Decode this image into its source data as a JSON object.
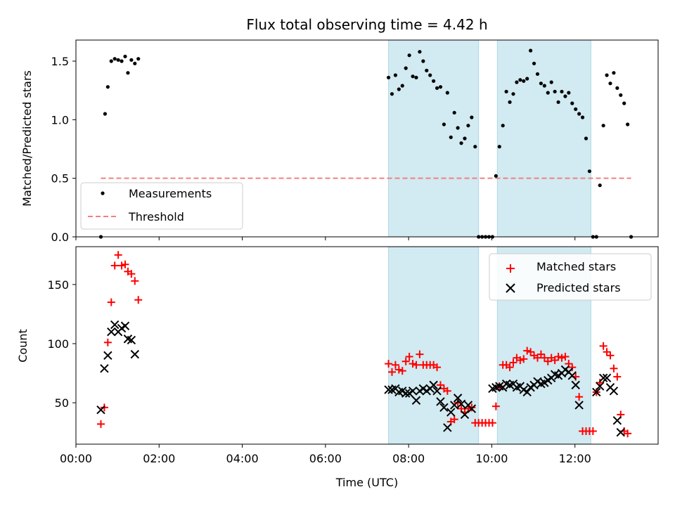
{
  "title": "Flux total observing time = 4.42 h",
  "chart_data": [
    {
      "type": "scatter",
      "panel": "top",
      "ylabel": "Matched/Predicted stars",
      "xlim": [
        "00:00",
        "14:00"
      ],
      "ylim": [
        0,
        1.68
      ],
      "yticks": [
        0,
        0.5,
        1.0,
        1.5
      ],
      "ytick_labels": [
        "0.0",
        "0.5",
        "1.0",
        "1.5"
      ],
      "grid": false,
      "legend_position": "lower-left",
      "shaded_intervals": [
        [
          "07:31",
          "09:41"
        ],
        [
          "10:08",
          "12:23"
        ]
      ],
      "shade_color": "#add8e6",
      "series": [
        {
          "name": "Measurements",
          "marker": "dot",
          "color": "#000000",
          "points": [
            [
              "00:36",
              0.0
            ],
            [
              "00:42",
              1.05
            ],
            [
              "00:46",
              1.28
            ],
            [
              "00:51",
              1.5
            ],
            [
              "00:56",
              1.52
            ],
            [
              "01:01",
              1.51
            ],
            [
              "01:06",
              1.5
            ],
            [
              "01:11",
              1.54
            ],
            [
              "01:15",
              1.4
            ],
            [
              "01:20",
              1.51
            ],
            [
              "01:25",
              1.48
            ],
            [
              "01:30",
              1.52
            ],
            [
              "07:31",
              1.36
            ],
            [
              "07:36",
              1.22
            ],
            [
              "07:41",
              1.38
            ],
            [
              "07:46",
              1.26
            ],
            [
              "07:51",
              1.29
            ],
            [
              "07:56",
              1.44
            ],
            [
              "08:01",
              1.55
            ],
            [
              "08:06",
              1.37
            ],
            [
              "08:11",
              1.36
            ],
            [
              "08:16",
              1.58
            ],
            [
              "08:21",
              1.5
            ],
            [
              "08:26",
              1.42
            ],
            [
              "08:31",
              1.38
            ],
            [
              "08:36",
              1.33
            ],
            [
              "08:41",
              1.27
            ],
            [
              "08:46",
              1.28
            ],
            [
              "08:51",
              0.96
            ],
            [
              "08:56",
              1.23
            ],
            [
              "09:01",
              0.85
            ],
            [
              "09:06",
              1.06
            ],
            [
              "09:11",
              0.93
            ],
            [
              "09:16",
              0.8
            ],
            [
              "09:21",
              0.84
            ],
            [
              "09:26",
              0.95
            ],
            [
              "09:31",
              1.02
            ],
            [
              "09:36",
              0.77
            ],
            [
              "09:41",
              0.0
            ],
            [
              "09:46",
              0.0
            ],
            [
              "09:51",
              0.0
            ],
            [
              "09:56",
              0.0
            ],
            [
              "10:01",
              0.0
            ],
            [
              "10:06",
              0.52
            ],
            [
              "10:11",
              0.77
            ],
            [
              "10:16",
              0.95
            ],
            [
              "10:21",
              1.24
            ],
            [
              "10:26",
              1.15
            ],
            [
              "10:31",
              1.22
            ],
            [
              "10:36",
              1.32
            ],
            [
              "10:41",
              1.34
            ],
            [
              "10:46",
              1.33
            ],
            [
              "10:51",
              1.35
            ],
            [
              "10:56",
              1.59
            ],
            [
              "11:01",
              1.48
            ],
            [
              "11:06",
              1.39
            ],
            [
              "11:11",
              1.31
            ],
            [
              "11:16",
              1.29
            ],
            [
              "11:21",
              1.23
            ],
            [
              "11:26",
              1.32
            ],
            [
              "11:31",
              1.24
            ],
            [
              "11:36",
              1.15
            ],
            [
              "11:41",
              1.24
            ],
            [
              "11:46",
              1.2
            ],
            [
              "11:51",
              1.23
            ],
            [
              "11:56",
              1.14
            ],
            [
              "12:01",
              1.09
            ],
            [
              "12:06",
              1.05
            ],
            [
              "12:11",
              1.02
            ],
            [
              "12:16",
              0.84
            ],
            [
              "12:21",
              0.56
            ],
            [
              "12:26",
              0.0
            ],
            [
              "12:31",
              0.0
            ],
            [
              "12:36",
              0.44
            ],
            [
              "12:41",
              0.95
            ],
            [
              "12:46",
              1.38
            ],
            [
              "12:51",
              1.31
            ],
            [
              "12:56",
              1.4
            ],
            [
              "13:01",
              1.27
            ],
            [
              "13:06",
              1.21
            ],
            [
              "13:11",
              1.14
            ],
            [
              "13:16",
              0.96
            ],
            [
              "13:21",
              0.0
            ]
          ]
        },
        {
          "name": "Threshold",
          "marker": "dashed-line",
          "color": "#f08080",
          "points": [
            [
              "00:36",
              0.5
            ],
            [
              "13:21",
              0.5
            ]
          ]
        }
      ]
    },
    {
      "type": "scatter",
      "panel": "bottom",
      "xlabel": "Time (UTC)",
      "ylabel": "Count",
      "xlim": [
        "00:00",
        "14:00"
      ],
      "ylim": [
        15,
        182
      ],
      "xticks": [
        "00:00",
        "02:00",
        "04:00",
        "06:00",
        "08:00",
        "10:00",
        "12:00"
      ],
      "yticks": [
        50,
        100,
        150
      ],
      "grid": false,
      "legend_position": "top-right",
      "shaded_intervals": [
        [
          "07:31",
          "09:41"
        ],
        [
          "10:08",
          "12:23"
        ]
      ],
      "shade_color": "#add8e6",
      "series": [
        {
          "name": "Matched stars",
          "marker": "plus",
          "color": "#ff0000",
          "points": [
            [
              "00:36",
              32
            ],
            [
              "00:41",
              46
            ],
            [
              "00:46",
              101
            ],
            [
              "00:51",
              135
            ],
            [
              "00:56",
              166
            ],
            [
              "01:01",
              175
            ],
            [
              "01:06",
              166
            ],
            [
              "01:11",
              167
            ],
            [
              "01:15",
              161
            ],
            [
              "01:20",
              159
            ],
            [
              "01:25",
              153
            ],
            [
              "01:30",
              137
            ],
            [
              "07:31",
              83
            ],
            [
              "07:36",
              76
            ],
            [
              "07:41",
              82
            ],
            [
              "07:46",
              78
            ],
            [
              "07:51",
              77
            ],
            [
              "07:56",
              85
            ],
            [
              "08:01",
              89
            ],
            [
              "08:06",
              83
            ],
            [
              "08:11",
              82
            ],
            [
              "08:16",
              91
            ],
            [
              "08:21",
              82
            ],
            [
              "08:26",
              82
            ],
            [
              "08:31",
              82
            ],
            [
              "08:36",
              82
            ],
            [
              "08:41",
              80
            ],
            [
              "08:46",
              65
            ],
            [
              "08:51",
              62
            ],
            [
              "08:56",
              60
            ],
            [
              "09:01",
              34
            ],
            [
              "09:06",
              36
            ],
            [
              "09:11",
              50
            ],
            [
              "09:16",
              45
            ],
            [
              "09:21",
              42
            ],
            [
              "09:26",
              45
            ],
            [
              "09:31",
              46
            ],
            [
              "09:36",
              33
            ],
            [
              "09:41",
              33
            ],
            [
              "09:46",
              33
            ],
            [
              "09:51",
              33
            ],
            [
              "09:56",
              33
            ],
            [
              "10:01",
              33
            ],
            [
              "10:06",
              47
            ],
            [
              "10:11",
              64
            ],
            [
              "10:16",
              82
            ],
            [
              "10:21",
              82
            ],
            [
              "10:26",
              80
            ],
            [
              "10:31",
              84
            ],
            [
              "10:36",
              88
            ],
            [
              "10:41",
              86
            ],
            [
              "10:46",
              87
            ],
            [
              "10:51",
              94
            ],
            [
              "10:56",
              93
            ],
            [
              "11:01",
              90
            ],
            [
              "11:06",
              88
            ],
            [
              "11:11",
              91
            ],
            [
              "11:16",
              88
            ],
            [
              "11:21",
              85
            ],
            [
              "11:26",
              88
            ],
            [
              "11:31",
              86
            ],
            [
              "11:36",
              89
            ],
            [
              "11:41",
              88
            ],
            [
              "11:46",
              89
            ],
            [
              "11:51",
              83
            ],
            [
              "11:56",
              80
            ],
            [
              "12:01",
              72
            ],
            [
              "12:06",
              55
            ],
            [
              "12:11",
              26
            ],
            [
              "12:16",
              26
            ],
            [
              "12:21",
              26
            ],
            [
              "12:26",
              26
            ],
            [
              "12:31",
              59
            ],
            [
              "12:36",
              67
            ],
            [
              "12:41",
              98
            ],
            [
              "12:46",
              93
            ],
            [
              "12:51",
              90
            ],
            [
              "12:56",
              79
            ],
            [
              "13:01",
              72
            ],
            [
              "13:06",
              40
            ],
            [
              "13:11",
              26
            ],
            [
              "13:16",
              24
            ]
          ]
        },
        {
          "name": "Predicted stars",
          "marker": "x",
          "color": "#000000",
          "points": [
            [
              "00:36",
              44
            ],
            [
              "00:41",
              79
            ],
            [
              "00:46",
              90
            ],
            [
              "00:51",
              110
            ],
            [
              "00:56",
              116
            ],
            [
              "01:01",
              110
            ],
            [
              "01:06",
              113
            ],
            [
              "01:11",
              115
            ],
            [
              "01:15",
              104
            ],
            [
              "01:20",
              103
            ],
            [
              "01:25",
              91
            ],
            [
              "07:31",
              61
            ],
            [
              "07:36",
              61
            ],
            [
              "07:41",
              62
            ],
            [
              "07:46",
              59
            ],
            [
              "07:51",
              60
            ],
            [
              "07:56",
              58
            ],
            [
              "08:01",
              58
            ],
            [
              "08:06",
              60
            ],
            [
              "08:11",
              52
            ],
            [
              "08:16",
              60
            ],
            [
              "08:21",
              62
            ],
            [
              "08:26",
              60
            ],
            [
              "08:31",
              62
            ],
            [
              "08:36",
              65
            ],
            [
              "08:41",
              60
            ],
            [
              "08:46",
              51
            ],
            [
              "08:51",
              46
            ],
            [
              "08:56",
              29
            ],
            [
              "09:01",
              42
            ],
            [
              "09:06",
              48
            ],
            [
              "09:11",
              54
            ],
            [
              "09:16",
              49
            ],
            [
              "09:21",
              40
            ],
            [
              "09:26",
              48
            ],
            [
              "09:31",
              45
            ],
            [
              "10:01",
              62
            ],
            [
              "10:06",
              63
            ],
            [
              "10:11",
              64
            ],
            [
              "10:16",
              63
            ],
            [
              "10:21",
              66
            ],
            [
              "10:26",
              65
            ],
            [
              "10:31",
              66
            ],
            [
              "10:36",
              63
            ],
            [
              "10:41",
              64
            ],
            [
              "10:46",
              61
            ],
            [
              "10:51",
              59
            ],
            [
              "10:56",
              63
            ],
            [
              "11:01",
              65
            ],
            [
              "11:06",
              68
            ],
            [
              "11:11",
              66
            ],
            [
              "11:16",
              67
            ],
            [
              "11:21",
              69
            ],
            [
              "11:26",
              71
            ],
            [
              "11:31",
              74
            ],
            [
              "11:36",
              73
            ],
            [
              "11:41",
              75
            ],
            [
              "11:46",
              78
            ],
            [
              "11:51",
              76
            ],
            [
              "11:56",
              73
            ],
            [
              "12:01",
              65
            ],
            [
              "12:06",
              48
            ],
            [
              "12:31",
              59
            ],
            [
              "12:36",
              64
            ],
            [
              "12:41",
              71
            ],
            [
              "12:46",
              71
            ],
            [
              "12:51",
              63
            ],
            [
              "12:56",
              60
            ],
            [
              "13:01",
              35
            ],
            [
              "13:06",
              25
            ]
          ]
        }
      ]
    }
  ]
}
